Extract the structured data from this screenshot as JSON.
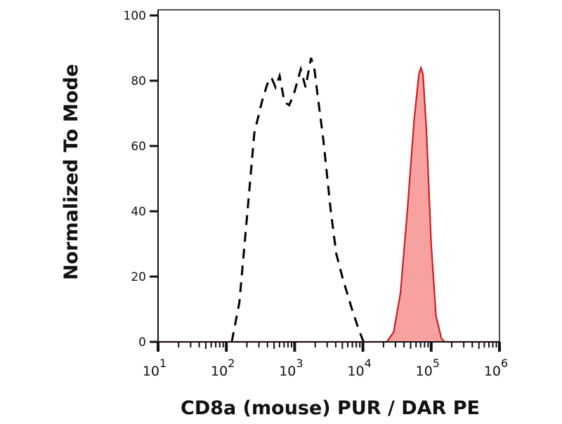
{
  "chart_data": {
    "type": "area",
    "title": "",
    "xlabel": "CD8a (mouse) PUR / DAR PE",
    "ylabel": "Normalized To Mode",
    "x_scale": "log",
    "xlim": [
      10,
      1000000
    ],
    "ylim": [
      0,
      100
    ],
    "x_ticks": [
      {
        "value": 10,
        "base": "10",
        "exp": "1"
      },
      {
        "value": 100,
        "base": "10",
        "exp": "2"
      },
      {
        "value": 1000,
        "base": "10",
        "exp": "3"
      },
      {
        "value": 10000,
        "base": "10",
        "exp": "4"
      },
      {
        "value": 100000,
        "base": "10",
        "exp": "5"
      },
      {
        "value": 1000000,
        "base": "10",
        "exp": "6"
      }
    ],
    "y_ticks": [
      "0",
      "20",
      "40",
      "60",
      "80",
      "100"
    ],
    "grid": false,
    "series": [
      {
        "style": "dashed-line",
        "color": "#000000",
        "x": [
          120,
          155,
          204,
          257,
          331,
          398,
          457,
          525,
          603,
          708,
          832,
          977,
          1230,
          1445,
          1738,
          1950,
          2188,
          2630,
          3388,
          4074,
          5129,
          6918,
          8710,
          10230
        ],
        "y": [
          0,
          12,
          40,
          64,
          73.5,
          79,
          81,
          78,
          81.5,
          73.5,
          72.5,
          76,
          83.5,
          78,
          87,
          83.5,
          75,
          62,
          40,
          27,
          19,
          10,
          3.7,
          0
        ]
      },
      {
        "style": "filled-area",
        "color": "#cc1f1f",
        "fill": "#f7a1a1",
        "x": [
          22390,
          28180,
          35480,
          44670,
          56230,
          66070,
          70790,
          75860,
          85110,
          100000,
          117500,
          141300,
          158500
        ],
        "y": [
          0,
          3,
          15,
          40,
          68,
          82,
          84,
          82,
          65,
          30,
          8,
          1,
          0
        ]
      }
    ]
  }
}
